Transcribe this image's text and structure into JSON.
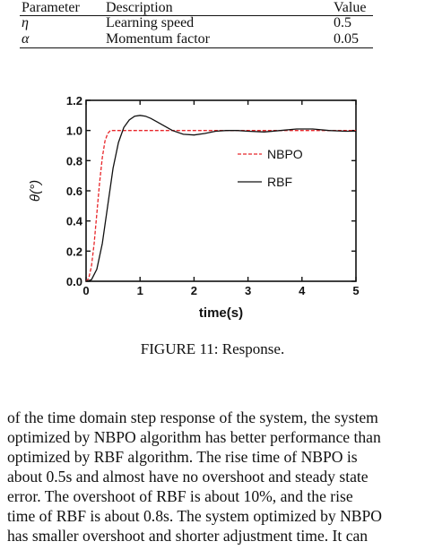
{
  "table": {
    "headers": [
      "Parameter",
      "Description",
      "Value"
    ],
    "rows": [
      [
        "η",
        "Learning speed",
        "0.5"
      ],
      [
        "α",
        "Momentum factor",
        "0.05"
      ]
    ]
  },
  "figure": {
    "caption": "FIGURE 11: Response."
  },
  "paragraph": {
    "lines": [
      "of the time domain step response of the system, the system",
      "optimized by NBPO algorithm has better performance than",
      "optimized by RBF algorithm. The rise time of NBPO is",
      "about 0.5s and almost have no overshoot and steady state",
      "error. The overshoot of RBF is about 10%, and the rise",
      "time of RBF is about 0.8s. The system optimized by NBPO",
      "has smaller overshoot and shorter adjustment time. It can"
    ]
  },
  "chart_data": {
    "type": "line",
    "xlabel": "time(s)",
    "ylabel": "θ(°)",
    "xlim": [
      0,
      5
    ],
    "ylim": [
      0,
      1.2
    ],
    "xticks": [
      "0",
      "1",
      "2",
      "3",
      "4",
      "5"
    ],
    "yticks": [
      "0.0",
      "0.2",
      "0.4",
      "0.6",
      "0.8",
      "1.0",
      "1.2"
    ],
    "legend_position": "right",
    "series": [
      {
        "name": "NBPO",
        "style": "dashed",
        "color": "#e8262a",
        "x": [
          0,
          0.05,
          0.1,
          0.15,
          0.2,
          0.25,
          0.3,
          0.35,
          0.4,
          0.45,
          0.5,
          0.55,
          0.6,
          0.7,
          0.8,
          1.0,
          2.0,
          3.0,
          4.0,
          5.0
        ],
        "y": [
          0,
          0.02,
          0.1,
          0.25,
          0.45,
          0.65,
          0.82,
          0.93,
          0.98,
          1.0,
          1.0,
          1.0,
          1.0,
          1.0,
          1.0,
          1.0,
          1.0,
          1.0,
          1.0,
          1.0
        ]
      },
      {
        "name": "RBF",
        "style": "solid",
        "color": "#111111",
        "x": [
          0,
          0.1,
          0.2,
          0.3,
          0.4,
          0.5,
          0.6,
          0.7,
          0.8,
          0.9,
          1.0,
          1.1,
          1.2,
          1.3,
          1.4,
          1.5,
          1.6,
          1.8,
          2.0,
          2.2,
          2.4,
          2.6,
          2.8,
          3.0,
          3.3,
          3.6,
          3.9,
          4.2,
          4.5,
          4.8,
          5.0
        ],
        "y": [
          0,
          0.01,
          0.08,
          0.25,
          0.5,
          0.75,
          0.92,
          1.02,
          1.07,
          1.095,
          1.1,
          1.095,
          1.08,
          1.06,
          1.04,
          1.02,
          1.0,
          0.975,
          0.97,
          0.98,
          0.995,
          1.0,
          1.0,
          0.995,
          0.99,
          1.0,
          1.01,
          1.01,
          1.0,
          0.995,
          0.995
        ]
      }
    ]
  }
}
